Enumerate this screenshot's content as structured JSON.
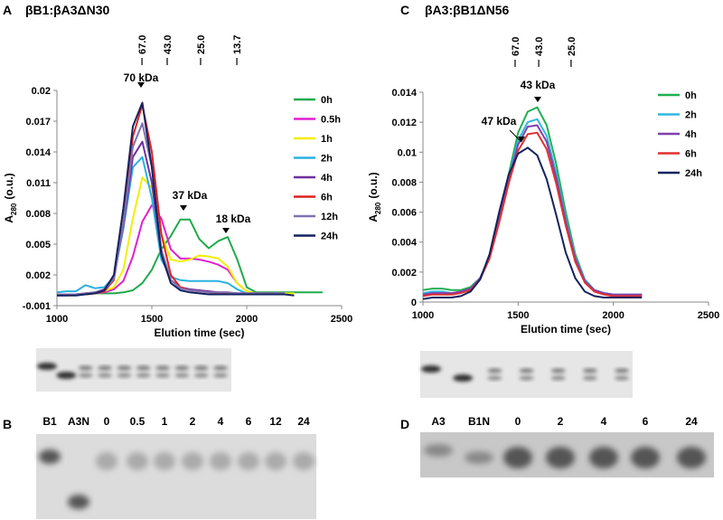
{
  "chart_data": [
    {
      "type": "line",
      "panel": "A",
      "title": "βB1:βA3ΔN30",
      "xlabel": "Elution time (sec)",
      "ylabel": [
        "A",
        "280",
        "(o.u.)"
      ],
      "xlim": [
        1000,
        2500
      ],
      "xticks": [
        1000,
        1500,
        2000,
        2500
      ],
      "ylim": [
        -0.001,
        0.02
      ],
      "yticks": [
        -0.001,
        0.002,
        0.005,
        0.008,
        0.011,
        0.014,
        0.017,
        0.02
      ],
      "markers": [
        {
          "value": 1448,
          "label": "67.0"
        },
        {
          "value": 1581,
          "label": "43.0"
        },
        {
          "value": 1757,
          "label": "25.0"
        },
        {
          "value": 1948,
          "label": "13.7"
        }
      ],
      "annotations": [
        "70 kDa",
        "37 kDa",
        "18 kDa"
      ],
      "x": [
        1000,
        1050,
        1100,
        1150,
        1200,
        1250,
        1300,
        1350,
        1400,
        1450,
        1500,
        1550,
        1600,
        1650,
        1700,
        1750,
        1800,
        1850,
        1900,
        1950,
        2000,
        2050,
        2100,
        2150,
        2200,
        2250,
        2300,
        2350,
        2400
      ],
      "series": [
        {
          "name": "0h",
          "color": "#1faa4c",
          "values": [
            0.0001,
            0.0001,
            0.0001,
            0.0002,
            0.0002,
            0.0002,
            0.0002,
            0.0003,
            0.0005,
            0.0012,
            0.0025,
            0.0045,
            0.0058,
            0.0074,
            0.0074,
            0.0055,
            0.0046,
            0.0053,
            0.0057,
            0.0035,
            0.0008,
            0.0003,
            0.0003,
            0.0003,
            0.0003,
            0.0003,
            0.0003,
            0.0003,
            0.0003
          ]
        },
        {
          "name": "0.5h",
          "color": "#e020d0",
          "values": [
            0,
            0,
            0.0001,
            0.0001,
            0.0002,
            0.0003,
            0.0006,
            0.0014,
            0.0038,
            0.0072,
            0.0088,
            0.0075,
            0.0045,
            0.0036,
            0.0036,
            0.0035,
            0.0033,
            0.003,
            0.0025,
            0.0012,
            0.0004,
            0.0002,
            0.0002,
            0.0002,
            0.0002,
            null,
            null,
            null,
            null
          ]
        },
        {
          "name": "1h",
          "color": "#f2ee00",
          "values": [
            0.0001,
            0.0001,
            0.0001,
            0.0001,
            0.0002,
            0.0004,
            0.0008,
            0.0025,
            0.0075,
            0.0115,
            0.0105,
            0.006,
            0.0035,
            0.0033,
            0.0035,
            0.0039,
            0.0038,
            0.0036,
            0.0028,
            0.0012,
            0.0004,
            0.0002,
            0.0002,
            0.0002,
            0.0002,
            0.0002,
            null,
            null,
            null
          ]
        },
        {
          "name": "2h",
          "color": "#2ab0e0",
          "values": [
            0.0003,
            0.0004,
            0.0004,
            0.001,
            0.0007,
            0.0008,
            0.0018,
            0.0065,
            0.0125,
            0.0135,
            0.0095,
            0.0035,
            0.0018,
            0.0015,
            0.0014,
            0.0014,
            0.0014,
            0.0014,
            0.0012,
            0.0006,
            0.0002,
            0.0002,
            0.0002,
            0.0002,
            0.0002,
            null,
            null,
            null,
            null
          ]
        },
        {
          "name": "4h",
          "color": "#7030a0",
          "values": [
            0.0001,
            0.0001,
            0.0001,
            0.0002,
            0.0003,
            0.0006,
            0.0018,
            0.0068,
            0.0135,
            0.015,
            0.011,
            0.004,
            0.0015,
            0.0008,
            0.0006,
            0.0005,
            0.0004,
            0.0003,
            0.0003,
            0.0002,
            0.0002,
            0.0002,
            0.0002,
            0.0002,
            0.0001,
            null,
            null,
            null,
            null
          ]
        },
        {
          "name": "6h",
          "color": "#e02020",
          "values": [
            0.0001,
            0.0001,
            0.0001,
            0.0001,
            0.0002,
            0.0004,
            0.0015,
            0.0072,
            0.0155,
            0.0186,
            0.014,
            0.006,
            0.002,
            0.0008,
            0.0005,
            0.0004,
            0.0003,
            0.0002,
            0.0002,
            0.0002,
            0.0002,
            0.0002,
            0.0002,
            0.0002,
            0.0002,
            null,
            null,
            null,
            null
          ]
        },
        {
          "name": "12h",
          "color": "#8070b0",
          "values": [
            0.0001,
            0.0001,
            0.0001,
            0.0002,
            0.0003,
            0.0005,
            0.0016,
            0.007,
            0.0145,
            0.0168,
            0.0125,
            0.0045,
            0.0015,
            0.0007,
            0.0005,
            0.0004,
            0.0003,
            0.0003,
            0.0003,
            0.0002,
            0.0002,
            0.0002,
            0.0002,
            0.0002,
            0.0002,
            null,
            null,
            null,
            null
          ]
        },
        {
          "name": "24h",
          "color": "#12235e",
          "values": [
            0,
            0,
            0,
            0.0001,
            0.0002,
            0.0005,
            0.002,
            0.0085,
            0.0165,
            0.0188,
            0.0125,
            0.004,
            0.0012,
            0.0005,
            0.0003,
            0.0002,
            0.0001,
            0.0001,
            0.0001,
            0.0001,
            0.0001,
            0.0001,
            0.0001,
            0.0001,
            0.0001,
            0,
            null,
            null,
            null
          ]
        }
      ]
    },
    {
      "type": "line",
      "panel": "C",
      "title": "βA3:βB1ΔN56",
      "xlabel": "Elution time (sec)",
      "ylabel": [
        "A",
        "280",
        "(o.u.)"
      ],
      "xlim": [
        1000,
        2500
      ],
      "xticks": [
        1000,
        1500,
        2000,
        2500
      ],
      "ylim": [
        0,
        0.014
      ],
      "yticks": [
        0,
        0.002,
        0.004,
        0.006,
        0.008,
        0.01,
        0.012,
        0.014
      ],
      "markers": [
        {
          "value": 1484,
          "label": "67.0"
        },
        {
          "value": 1608,
          "label": "43.0"
        },
        {
          "value": 1778,
          "label": "25.0"
        }
      ],
      "annotations": [
        "43 kDa",
        "47 kDa"
      ],
      "x": [
        1000,
        1050,
        1100,
        1150,
        1200,
        1250,
        1300,
        1350,
        1400,
        1450,
        1500,
        1550,
        1600,
        1650,
        1700,
        1750,
        1800,
        1850,
        1900,
        1950,
        2000,
        2050,
        2100,
        2150
      ],
      "series": [
        {
          "name": "0h",
          "color": "#20b050",
          "values": [
            0.0008,
            0.0009,
            0.0009,
            0.0008,
            0.0008,
            0.001,
            0.0016,
            0.003,
            0.0055,
            0.0085,
            0.0113,
            0.0127,
            0.013,
            0.0118,
            0.0092,
            0.006,
            0.0032,
            0.0015,
            0.0008,
            0.0006,
            0.0005,
            0.0005,
            0.0005,
            0.0005
          ]
        },
        {
          "name": "2h",
          "color": "#30b8e0",
          "values": [
            0.0006,
            0.0007,
            0.0007,
            0.0006,
            0.0007,
            0.0009,
            0.0016,
            0.003,
            0.0055,
            0.0083,
            0.0108,
            0.012,
            0.0122,
            0.0111,
            0.0086,
            0.0056,
            0.003,
            0.0015,
            0.0008,
            0.0006,
            0.0005,
            0.0005,
            0.0005,
            0.0005
          ]
        },
        {
          "name": "4h",
          "color": "#8040b0",
          "values": [
            0.0005,
            0.0006,
            0.0006,
            0.0006,
            0.0007,
            0.0009,
            0.0016,
            0.003,
            0.0055,
            0.0082,
            0.0105,
            0.0117,
            0.0118,
            0.0107,
            0.0083,
            0.0054,
            0.0029,
            0.0014,
            0.0008,
            0.0006,
            0.0005,
            0.0005,
            0.0005,
            0.0005
          ]
        },
        {
          "name": "6h",
          "color": "#e03030",
          "values": [
            0.0004,
            0.0005,
            0.0005,
            0.0005,
            0.0006,
            0.0008,
            0.0015,
            0.0029,
            0.0053,
            0.0079,
            0.0101,
            0.0112,
            0.0113,
            0.0102,
            0.0079,
            0.0051,
            0.0027,
            0.0013,
            0.0007,
            0.0005,
            0.0004,
            0.0004,
            0.0004,
            0.0004
          ]
        },
        {
          "name": "24h",
          "color": "#12235e",
          "values": [
            0.0002,
            0.0003,
            0.0003,
            0.0003,
            0.0004,
            0.0007,
            0.0015,
            0.0032,
            0.006,
            0.0085,
            0.0099,
            0.0103,
            0.0098,
            0.0082,
            0.0058,
            0.0033,
            0.0016,
            0.0007,
            0.0004,
            0.0003,
            0.0003,
            0.0003,
            0.0003,
            0.0003
          ]
        }
      ]
    }
  ],
  "gels": [
    {
      "panel": "B",
      "lanes": [
        "B1",
        "A3N",
        "0",
        "0.5",
        "1",
        "2",
        "4",
        "6",
        "12",
        "24"
      ]
    },
    {
      "panel": "D",
      "lanes": [
        "A3",
        "B1N",
        "0",
        "2",
        "4",
        "6",
        "24"
      ]
    }
  ]
}
